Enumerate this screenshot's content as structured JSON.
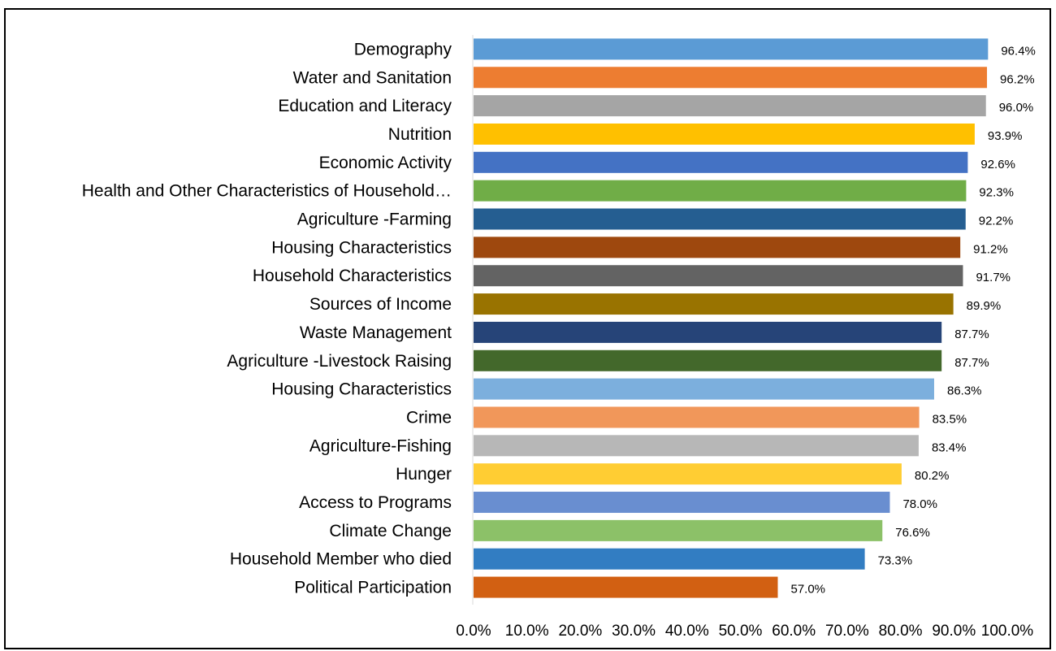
{
  "chart_data": {
    "type": "bar",
    "orientation": "horizontal",
    "categories": [
      "Demography",
      "Water and Sanitation",
      "Education and Literacy",
      "Nutrition",
      "Economic Activity",
      "Health and Other Characteristics of Household…",
      "Agriculture -Farming",
      "Housing Characteristics",
      "Household Characteristics",
      "Sources of Income",
      "Waste Management",
      "Agriculture -Livestock Raising",
      "Housing Characteristics",
      "Crime",
      "Agriculture-Fishing",
      "Hunger",
      "Access to Programs",
      "Climate Change",
      "Household Member who died",
      "Political Participation"
    ],
    "values": [
      96.4,
      96.2,
      96.0,
      93.9,
      92.6,
      92.3,
      92.2,
      91.2,
      91.7,
      89.9,
      87.7,
      87.7,
      86.3,
      83.5,
      83.4,
      80.2,
      78.0,
      76.6,
      73.3,
      57.0
    ],
    "value_labels": [
      "96.4%",
      "96.2%",
      "96.0%",
      "93.9%",
      "92.6%",
      "92.3%",
      "92.2%",
      "91.2%",
      "91.7%",
      "89.9%",
      "87.7%",
      "87.7%",
      "86.3%",
      "83.5%",
      "83.4%",
      "80.2%",
      "78.0%",
      "76.6%",
      "73.3%",
      "57.0%"
    ],
    "colors": [
      "#5b9bd5",
      "#ed7d31",
      "#a5a5a5",
      "#ffc000",
      "#4472c4",
      "#70ad47",
      "#255e91",
      "#9e480e",
      "#636363",
      "#997300",
      "#264478",
      "#43682b",
      "#7cafdd",
      "#f1975a",
      "#b7b7b7",
      "#ffcd33",
      "#698ed0",
      "#8cc168",
      "#327dc2",
      "#d26012"
    ],
    "x_ticks": [
      "0.0%",
      "10.0%",
      "20.0%",
      "30.0%",
      "40.0%",
      "50.0%",
      "60.0%",
      "70.0%",
      "80.0%",
      "90.0%",
      "100.0%"
    ],
    "xlim": [
      0,
      100
    ],
    "title": "",
    "xlabel": "",
    "ylabel": "",
    "grid": false,
    "legend": "none"
  }
}
